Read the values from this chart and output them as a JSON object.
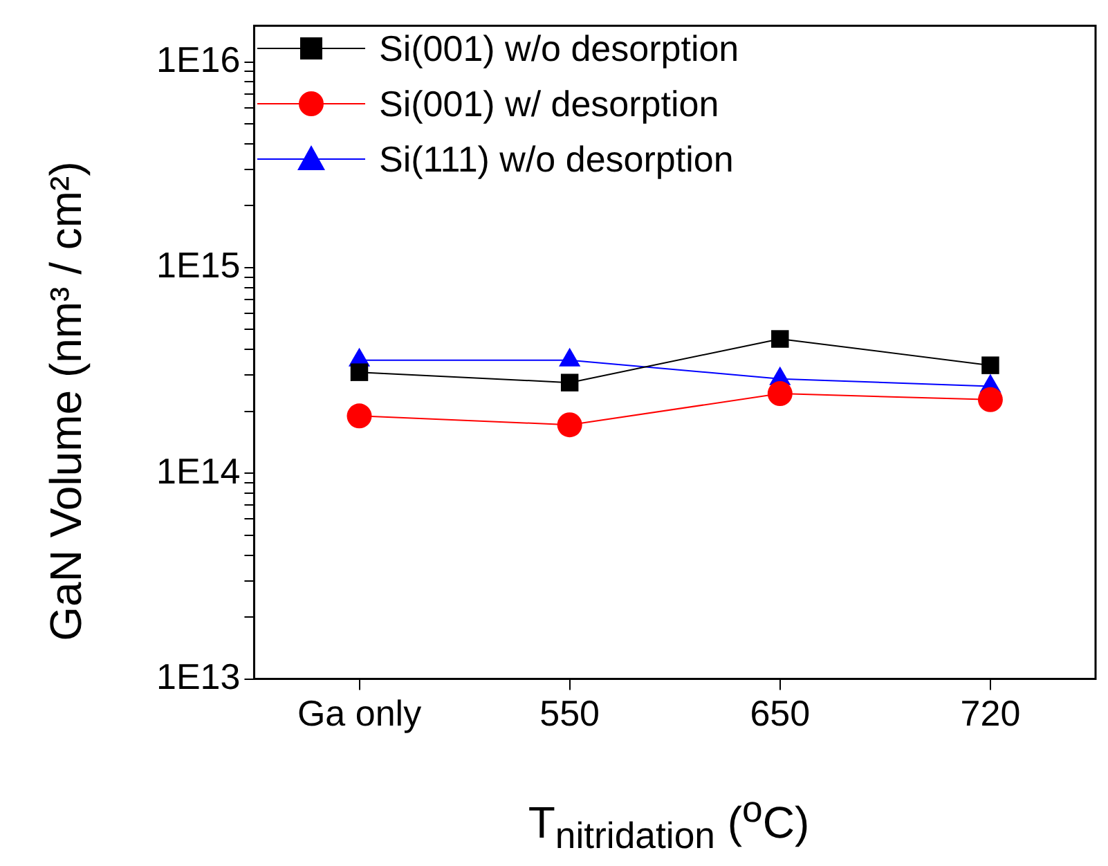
{
  "chart_data": {
    "type": "line",
    "xlabel": "T$_{nitridation}$ ($^{o}$C)",
    "ylabel": "GaN Volume (nm³ / cm²)",
    "categories": [
      "Ga only",
      "550",
      "650",
      "720"
    ],
    "series": [
      {
        "name": "Si(001) w/o desorption",
        "color": "#000000",
        "marker": "square",
        "values": [
          310000000000000.0,
          276000000000000.0,
          450000000000000.0,
          335000000000000.0
        ]
      },
      {
        "name": "Si(001) w/ desorption",
        "color": "#ff0000",
        "marker": "circle",
        "values": [
          190000000000000.0,
          172000000000000.0,
          244000000000000.0,
          228000000000000.0
        ]
      },
      {
        "name": "Si(111) w/o desorption",
        "color": "#0000ff",
        "marker": "triangle",
        "values": [
          355000000000000.0,
          355000000000000.0,
          288000000000000.0,
          265000000000000.0
        ]
      }
    ],
    "log": "y",
    "ylim": [
      10000000000000.0,
      1.5e+16
    ],
    "yticks": [
      {
        "value": 10000000000000.0,
        "label": "1E13"
      },
      {
        "value": 20000000000000.0,
        "label": null
      },
      {
        "value": 30000000000000.0,
        "label": null
      },
      {
        "value": 40000000000000.0,
        "label": null
      },
      {
        "value": 50000000000000.0,
        "label": null
      },
      {
        "value": 60000000000000.0,
        "label": null
      },
      {
        "value": 70000000000000.0,
        "label": null
      },
      {
        "value": 80000000000000.0,
        "label": null
      },
      {
        "value": 90000000000000.0,
        "label": null
      },
      {
        "value": 100000000000000.0,
        "label": "1E14"
      },
      {
        "value": 200000000000000.0,
        "label": null
      },
      {
        "value": 300000000000000.0,
        "label": null
      },
      {
        "value": 400000000000000.0,
        "label": null
      },
      {
        "value": 500000000000000.0,
        "label": null
      },
      {
        "value": 600000000000000.0,
        "label": null
      },
      {
        "value": 700000000000000.0,
        "label": null
      },
      {
        "value": 800000000000000.0,
        "label": null
      },
      {
        "value": 900000000000000.0,
        "label": null
      },
      {
        "value": 1000000000000000.0,
        "label": "1E15"
      },
      {
        "value": 2000000000000000.0,
        "label": null
      },
      {
        "value": 3000000000000000.0,
        "label": null
      },
      {
        "value": 4000000000000000.0,
        "label": null
      },
      {
        "value": 5000000000000000.0,
        "label": null
      },
      {
        "value": 6000000000000000.0,
        "label": null
      },
      {
        "value": 7000000000000000.0,
        "label": null
      },
      {
        "value": 8000000000000000.0,
        "label": null
      },
      {
        "value": 9000000000000000.0,
        "label": null
      },
      {
        "value": 1e+16,
        "label": "1E16"
      }
    ],
    "grid": false,
    "legend": "top left",
    "line_style": "solid"
  }
}
